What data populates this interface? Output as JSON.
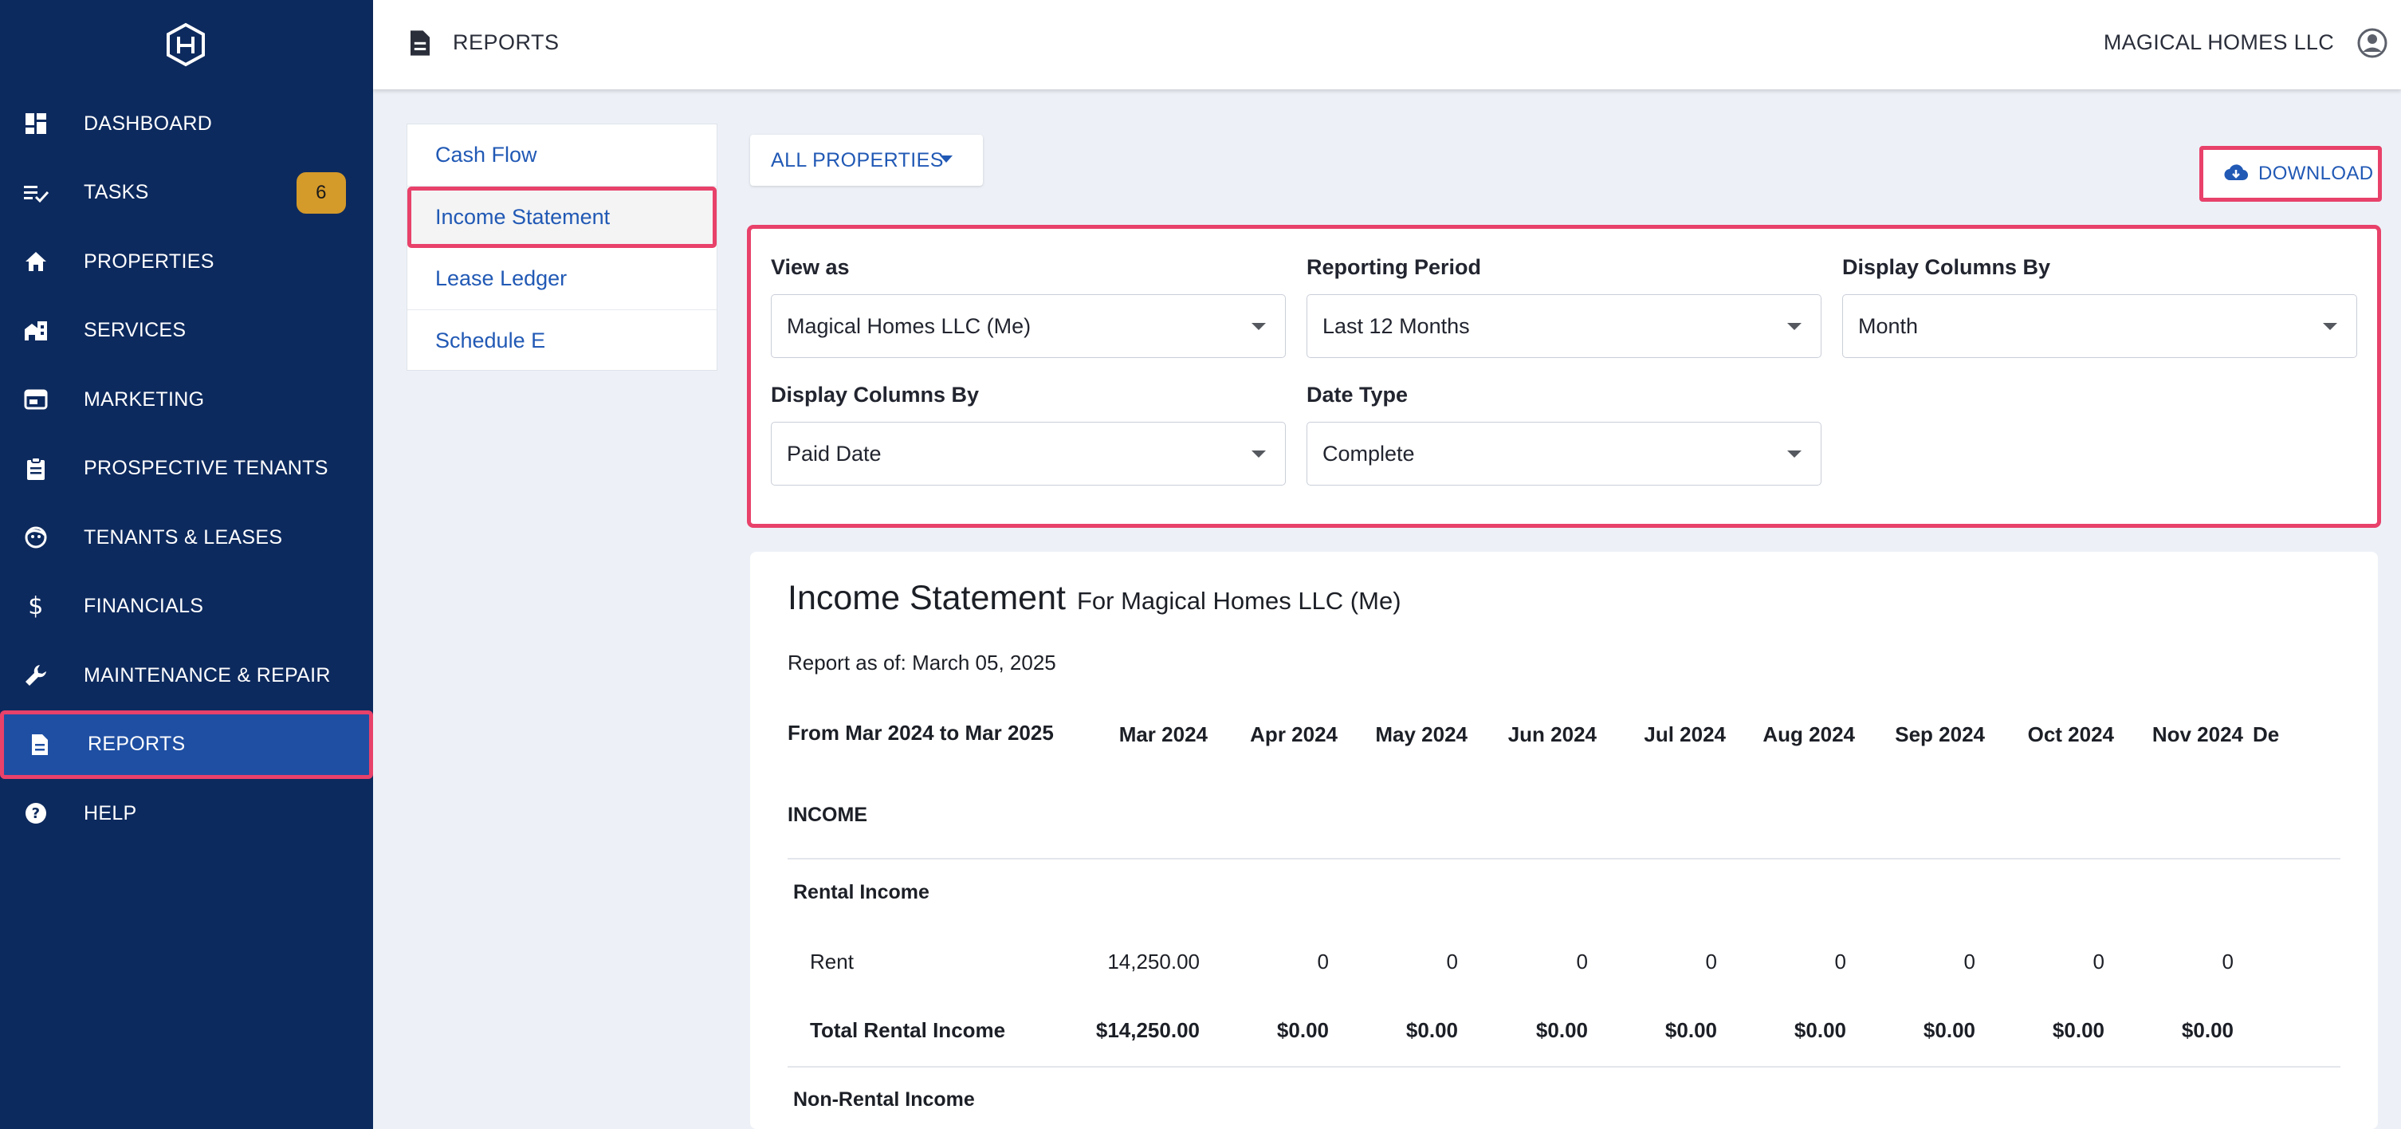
{
  "sidebar": {
    "logo": "house-hex-logo",
    "items": [
      {
        "label": "DASHBOARD",
        "icon": "dashboard-icon"
      },
      {
        "label": "TASKS",
        "icon": "tasks-icon",
        "badge": "6"
      },
      {
        "label": "PROPERTIES",
        "icon": "home-icon"
      },
      {
        "label": "SERVICES",
        "icon": "services-icon"
      },
      {
        "label": "MARKETING",
        "icon": "marketing-icon"
      },
      {
        "label": "PROSPECTIVE TENANTS",
        "icon": "clipboard-icon"
      },
      {
        "label": "TENANTS & LEASES",
        "icon": "face-icon"
      },
      {
        "label": "FINANCIALS",
        "icon": "dollar-icon"
      },
      {
        "label": "MAINTENANCE & REPAIR",
        "icon": "wrench-icon"
      },
      {
        "label": "REPORTS",
        "icon": "document-icon",
        "active": true
      },
      {
        "label": "HELP",
        "icon": "help-icon"
      }
    ]
  },
  "topbar": {
    "title": "REPORTS",
    "company": "MAGICAL HOMES LLC"
  },
  "report_types": [
    {
      "label": "Cash Flow"
    },
    {
      "label": "Income Statement",
      "active": true
    },
    {
      "label": "Lease Ledger"
    },
    {
      "label": "Schedule E"
    }
  ],
  "properties_dropdown": {
    "label": "ALL PROPERTIES"
  },
  "download": {
    "label": "DOWNLOAD"
  },
  "filters": {
    "view_as": {
      "label": "View as",
      "value": "Magical Homes LLC (Me)"
    },
    "reporting_period": {
      "label": "Reporting Period",
      "value": "Last 12 Months"
    },
    "display_columns_by": {
      "label": "Display Columns By",
      "value": "Month"
    },
    "display_columns_by_2": {
      "label": "Display Columns By",
      "value": "Paid Date"
    },
    "date_type": {
      "label": "Date Type",
      "value": "Complete"
    }
  },
  "report": {
    "title": "Income Statement",
    "subtitle": "For Magical Homes LLC (Me)",
    "as_of": "Report as of: March 05, 2025",
    "range": "From Mar 2024 to Mar 2025",
    "columns": [
      "Mar 2024",
      "Apr 2024",
      "May 2024",
      "Jun 2024",
      "Jul 2024",
      "Aug 2024",
      "Sep 2024",
      "Oct 2024",
      "Nov 2024",
      "De"
    ],
    "income_heading": "INCOME",
    "rental_income_heading": "Rental Income",
    "rent_label": "Rent",
    "rent_values": [
      "14,250.00",
      "0",
      "0",
      "0",
      "0",
      "0",
      "0",
      "0",
      "0"
    ],
    "total_rental_label": "Total Rental Income",
    "total_rental_values": [
      "$14,250.00",
      "$0.00",
      "$0.00",
      "$0.00",
      "$0.00",
      "$0.00",
      "$0.00",
      "$0.00",
      "$0.00"
    ],
    "non_rental_heading": "Non-Rental Income"
  },
  "colors": {
    "sidebar_bg": "#0d2a5e",
    "active_bg": "#1f4fa3",
    "highlight": "#e8416a",
    "link": "#2159b5",
    "badge": "#d49a2a"
  }
}
